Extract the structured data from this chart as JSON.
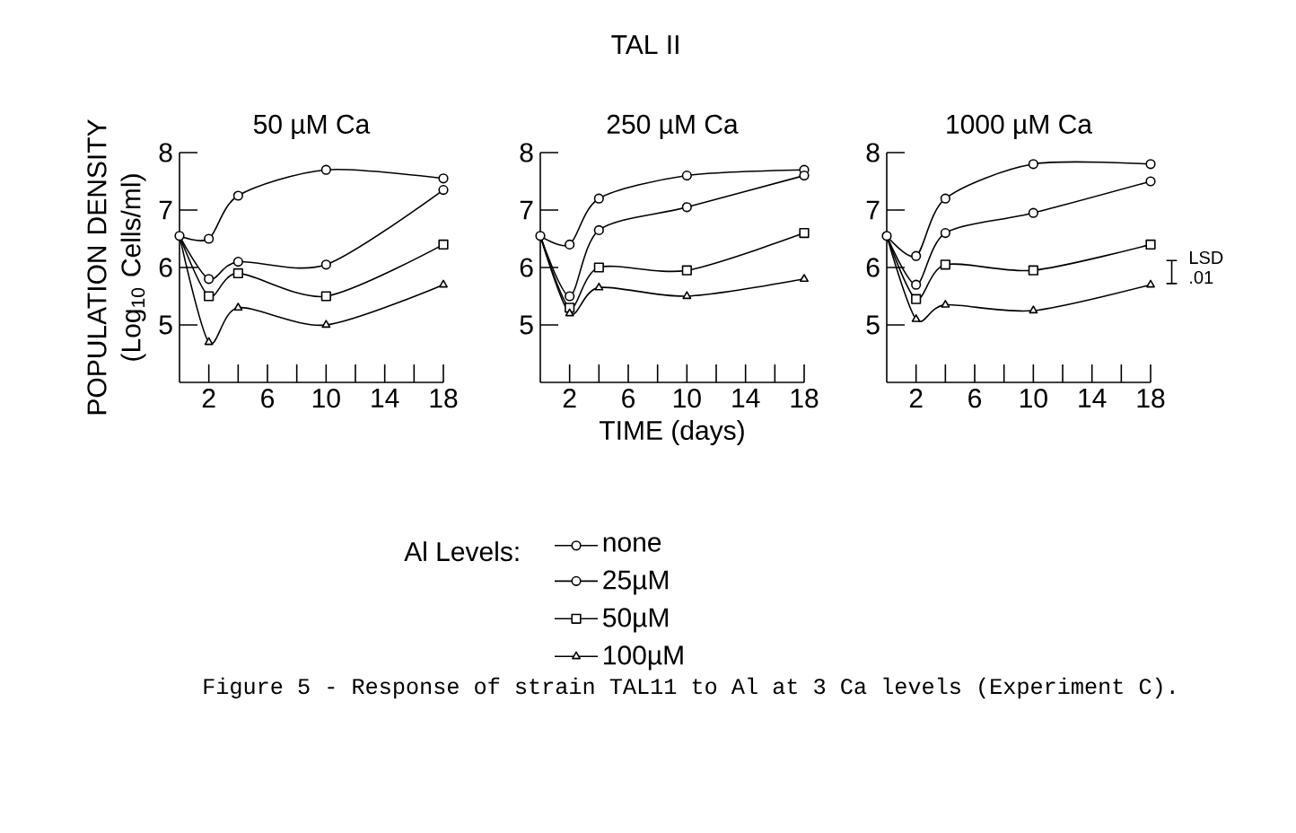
{
  "chart_data": [
    {
      "type": "line",
      "title": "50 µM Ca",
      "ylabel": "POPULATION DENSITY (Log$_{10}$ Cells/ml)",
      "xlim": [
        0,
        18
      ],
      "ylim": [
        4,
        8
      ],
      "xticks": [
        {
          "value": 2,
          "label": "2"
        },
        {
          "value": 4,
          "label": null
        },
        {
          "value": 6,
          "label": "6"
        },
        {
          "value": 8,
          "label": null
        },
        {
          "value": 10,
          "label": "10"
        },
        {
          "value": 12,
          "label": null
        },
        {
          "value": 14,
          "label": "14"
        },
        {
          "value": 16,
          "label": null
        },
        {
          "value": 18,
          "label": "18"
        }
      ],
      "yticks": [
        5,
        6,
        7,
        8
      ],
      "line_style": "solid",
      "series": [
        {
          "color": "#000000",
          "marker": "circle",
          "x": [
            0,
            2,
            4,
            10,
            18
          ],
          "values": [
            6.55,
            6.5,
            7.25,
            7.7,
            7.55
          ]
        },
        {
          "color": "#000000",
          "marker": "circle",
          "x": [
            0,
            2,
            4,
            10,
            18
          ],
          "values": [
            6.55,
            5.8,
            6.1,
            6.05,
            7.35
          ]
        },
        {
          "color": "#000000",
          "marker": "square",
          "x": [
            0,
            2,
            4,
            10,
            18
          ],
          "values": [
            6.55,
            5.5,
            5.9,
            5.5,
            6.4
          ]
        },
        {
          "color": "#000000",
          "marker": "triangle",
          "x": [
            0,
            2,
            4,
            10,
            18
          ],
          "values": [
            6.55,
            4.7,
            5.3,
            5.0,
            5.7
          ]
        }
      ]
    },
    {
      "type": "line",
      "title": "250 µM Ca",
      "xlabel": "TIME (days)",
      "legend": "bottom",
      "legend_title": "Al Levels:",
      "annotations": [
        "TAL II",
        "Figure 5 - Response of strain TAL11  to Al at 3 Ca levels (Experiment C)."
      ],
      "xlim": [
        0,
        18
      ],
      "ylim": [
        4,
        8
      ],
      "xticks": [
        {
          "value": 2,
          "label": "2"
        },
        {
          "value": 4,
          "label": null
        },
        {
          "value": 6,
          "label": "6"
        },
        {
          "value": 8,
          "label": null
        },
        {
          "value": 10,
          "label": "10"
        },
        {
          "value": 12,
          "label": null
        },
        {
          "value": 14,
          "label": "14"
        },
        {
          "value": 16,
          "label": null
        },
        {
          "value": 18,
          "label": "18"
        }
      ],
      "yticks": [
        5,
        6,
        7,
        8
      ],
      "line_style": "solid",
      "series": [
        {
          "name": "none",
          "color": "#000000",
          "marker": "circle",
          "x": [
            0,
            2,
            4,
            10,
            18
          ],
          "values": [
            6.55,
            6.4,
            7.2,
            7.6,
            7.7
          ]
        },
        {
          "name": "25µM",
          "color": "#000000",
          "marker": "circle",
          "x": [
            0,
            2,
            4,
            10,
            18
          ],
          "values": [
            6.55,
            5.5,
            6.65,
            7.05,
            7.6
          ]
        },
        {
          "name": "50µM",
          "color": "#000000",
          "marker": "square",
          "x": [
            0,
            2,
            4,
            10,
            18
          ],
          "values": [
            6.55,
            5.3,
            6.0,
            5.95,
            6.6
          ]
        },
        {
          "name": "100µM",
          "color": "#000000",
          "marker": "triangle",
          "x": [
            0,
            2,
            4,
            10,
            18
          ],
          "values": [
            6.55,
            5.2,
            5.65,
            5.5,
            5.8
          ]
        }
      ]
    },
    {
      "type": "line",
      "title": "1000 µM Ca",
      "annotations": [
        "LSD .01"
      ],
      "xlim": [
        0,
        18
      ],
      "ylim": [
        4,
        8
      ],
      "xticks": [
        {
          "value": 2,
          "label": "2"
        },
        {
          "value": 4,
          "label": null
        },
        {
          "value": 6,
          "label": "6"
        },
        {
          "value": 8,
          "label": null
        },
        {
          "value": 10,
          "label": "10"
        },
        {
          "value": 12,
          "label": null
        },
        {
          "value": 14,
          "label": "14"
        },
        {
          "value": 16,
          "label": null
        },
        {
          "value": 18,
          "label": "18"
        }
      ],
      "yticks": [
        5,
        6,
        7,
        8
      ],
      "line_style": "solid",
      "series": [
        {
          "color": "#000000",
          "marker": "circle",
          "x": [
            0,
            2,
            4,
            10,
            18
          ],
          "values": [
            6.55,
            6.2,
            7.2,
            7.8,
            7.8
          ]
        },
        {
          "color": "#000000",
          "marker": "circle",
          "x": [
            0,
            2,
            4,
            10,
            18
          ],
          "values": [
            6.55,
            5.7,
            6.6,
            6.95,
            7.5
          ]
        },
        {
          "color": "#000000",
          "marker": "square",
          "x": [
            0,
            2,
            4,
            10,
            18
          ],
          "values": [
            6.55,
            5.45,
            6.05,
            5.95,
            6.4
          ]
        },
        {
          "color": "#000000",
          "marker": "triangle",
          "x": [
            0,
            2,
            4,
            10,
            18
          ],
          "values": [
            6.55,
            5.1,
            5.35,
            5.25,
            5.7
          ]
        }
      ]
    }
  ]
}
